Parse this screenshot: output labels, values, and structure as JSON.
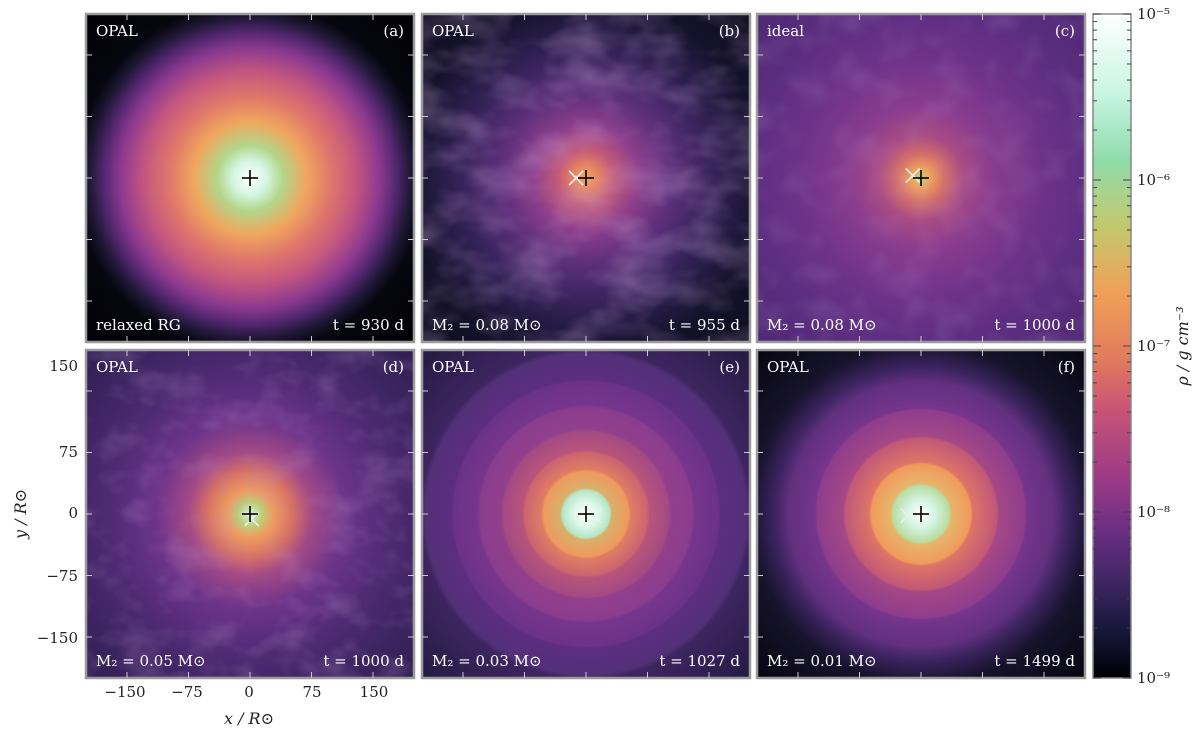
{
  "chart_data": {
    "type": "heatmap",
    "xlabel": "x / R⊙",
    "ylabel": "y / R⊙",
    "x_ticks": [
      "−150",
      "−75",
      "0",
      "75",
      "150"
    ],
    "y_ticks": [
      "150",
      "75",
      "0",
      "−75",
      "−150"
    ],
    "xlim": [
      -200,
      200
    ],
    "ylim": [
      -200,
      200
    ],
    "colorbar": {
      "label": "ρ / g cm⁻³",
      "scale": "log",
      "range": [
        1e-09,
        1e-05
      ],
      "tick_labels": [
        "10⁻⁵",
        "10⁻⁶",
        "10⁻⁷",
        "10⁻⁸",
        "10⁻⁹"
      ],
      "colormap_stops": [
        "#000004",
        "#1a1b3d",
        "#3b1f5e",
        "#6a2a7e",
        "#9b3a84",
        "#cf5578",
        "#e97a5a",
        "#f2a35a",
        "#b9d07a",
        "#7fd9a0",
        "#c9f5e4",
        "#ffffff"
      ]
    },
    "panels": [
      {
        "id": "(a)",
        "eos": "OPAL",
        "bottom_left": "relaxed RG",
        "time": "t = 930 d",
        "style": "relaxed"
      },
      {
        "id": "(b)",
        "eos": "OPAL",
        "bottom_left": "M₂ = 0.08 M⊙",
        "time": "t = 955 d",
        "style": "turbulent"
      },
      {
        "id": "(c)",
        "eos": "ideal",
        "bottom_left": "M₂ = 0.08 M⊙",
        "time": "t = 1000 d",
        "style": "diffuse"
      },
      {
        "id": "(d)",
        "eos": "OPAL",
        "bottom_left": "M₂ = 0.05 M⊙",
        "time": "t = 1000 d",
        "style": "turbulent-soft"
      },
      {
        "id": "(e)",
        "eos": "OPAL",
        "bottom_left": "M₂ = 0.03 M⊙",
        "time": "t = 1027 d",
        "style": "rings"
      },
      {
        "id": "(f)",
        "eos": "OPAL",
        "bottom_left": "M₂ = 0.01 M⊙",
        "time": "t = 1499 d",
        "style": "rings-dark"
      }
    ]
  }
}
